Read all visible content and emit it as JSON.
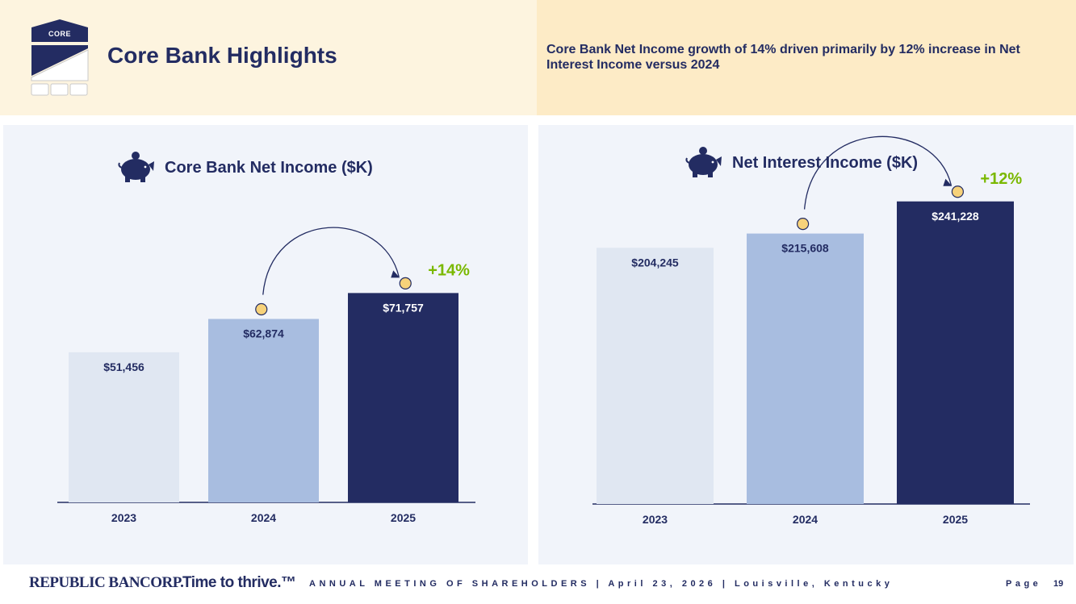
{
  "header": {
    "logo_text": "CORE",
    "title": "Core Bank Highlights",
    "note": "Core Bank Net Income growth of 14% driven primarily by 12% increase in Net Interest Income versus 2024"
  },
  "colors": {
    "bar_2023": "#E0E7F2",
    "bar_2024": "#A8BDE0",
    "bar_2025": "#232C62",
    "growth_label": "#7AB800",
    "coin": "#F7D27A"
  },
  "icons": [
    "piggy-bank-icon",
    "coin-icon",
    "growth-arrow-icon"
  ],
  "chart_data": [
    {
      "type": "bar",
      "title": "Core Bank Net Income ($K)",
      "categories": [
        "2023",
        "2024",
        "2025"
      ],
      "values": [
        51456,
        62874,
        71757
      ],
      "value_labels": [
        "$51,456",
        "$62,874",
        "$71,757"
      ],
      "growth_label": "+14%",
      "ylim": [
        0,
        110000
      ],
      "grid": false
    },
    {
      "type": "bar",
      "title": "Net Interest Income ($K)",
      "categories": [
        "2023",
        "2024",
        "2025"
      ],
      "values": [
        204245,
        215608,
        241228
      ],
      "value_labels": [
        "$204,245",
        "$215,608",
        "$241,228"
      ],
      "growth_label": "+12%",
      "ylim": [
        0,
        270000
      ],
      "grid": false
    }
  ],
  "footer": {
    "brand": "REPUBLIC BANCORP.",
    "tagline": "Time to thrive.™",
    "meeting": "ANNUAL MEETING OF SHAREHOLDERS | April 23, 2026 | Louisville, Kentucky",
    "page_label": "Page",
    "page_number": "19"
  }
}
